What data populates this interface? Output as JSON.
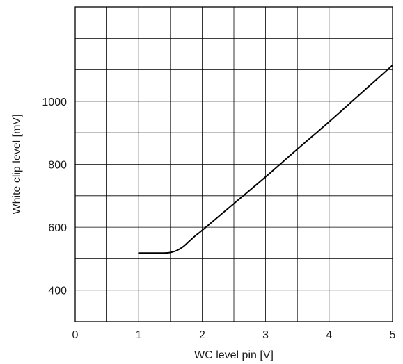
{
  "chart_data": {
    "type": "line",
    "title": "",
    "xlabel": "WC level pin [V]",
    "ylabel": "White clip level [mV]",
    "xlim": [
      0,
      5
    ],
    "ylim": [
      300,
      1300
    ],
    "x_ticks": [
      0,
      1,
      2,
      3,
      4,
      5
    ],
    "x_tick_labels": [
      "0",
      "1",
      "2",
      "3",
      "4",
      "5"
    ],
    "x_minor_grid_step": 0.5,
    "y_ticks": [
      400,
      600,
      800,
      1000
    ],
    "y_tick_labels": [
      "400",
      "600",
      "800",
      "1000"
    ],
    "y_minor_grid_step": 100,
    "grid": true,
    "series": [
      {
        "x": [
          1.0,
          1.2,
          1.4,
          1.5,
          1.6,
          1.7,
          1.8,
          1.9,
          2.0,
          2.5,
          3.0,
          3.5,
          4.0,
          4.5,
          5.0
        ],
        "y": [
          518,
          518,
          518,
          520,
          526,
          538,
          556,
          574,
          590,
          675,
          760,
          848,
          935,
          1025,
          1115
        ]
      }
    ],
    "colors": {
      "line": "#000000",
      "grid": "#000000",
      "background": "#ffffff"
    }
  }
}
